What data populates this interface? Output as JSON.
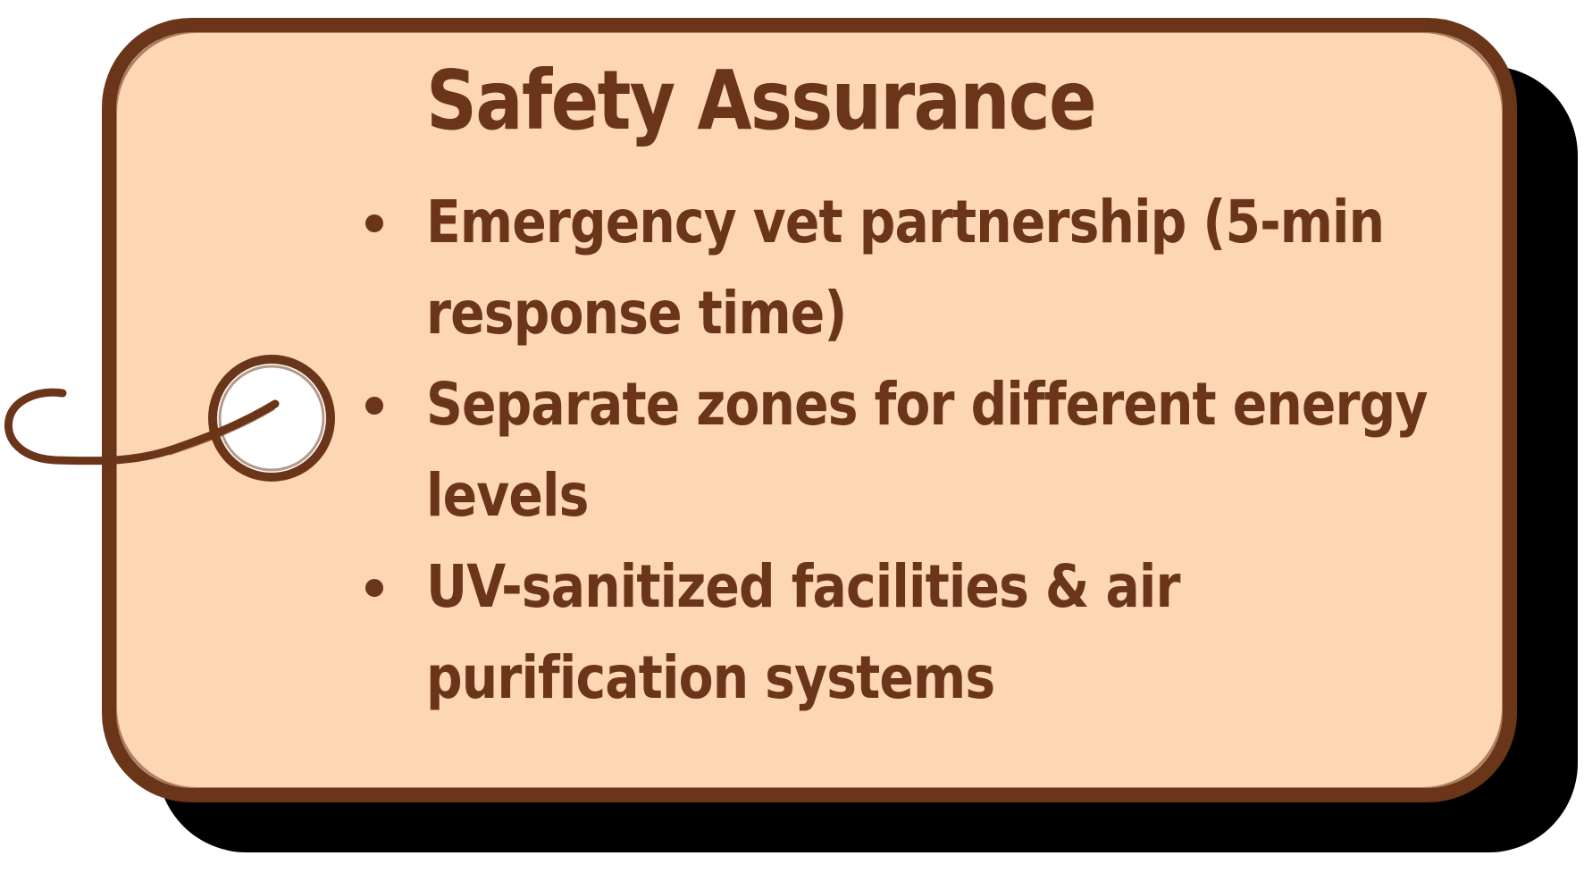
{
  "card": {
    "title": "Safety Assurance",
    "items": [
      {
        "text": "Emergency vet partnership (5-min response time)"
      },
      {
        "text": "Separate zones for different energy levels"
      },
      {
        "text": "UV-sanitized facilities & air purification systems"
      }
    ]
  },
  "colors": {
    "tag_fill": "#fdd6b4",
    "ink": "#6b3519",
    "shadow": "#000000",
    "hole": "#ffffff"
  },
  "icons": {
    "bullet": "bullet-dot-icon",
    "tag_hole": "tag-hole-icon",
    "tag_string": "tag-string-icon"
  }
}
